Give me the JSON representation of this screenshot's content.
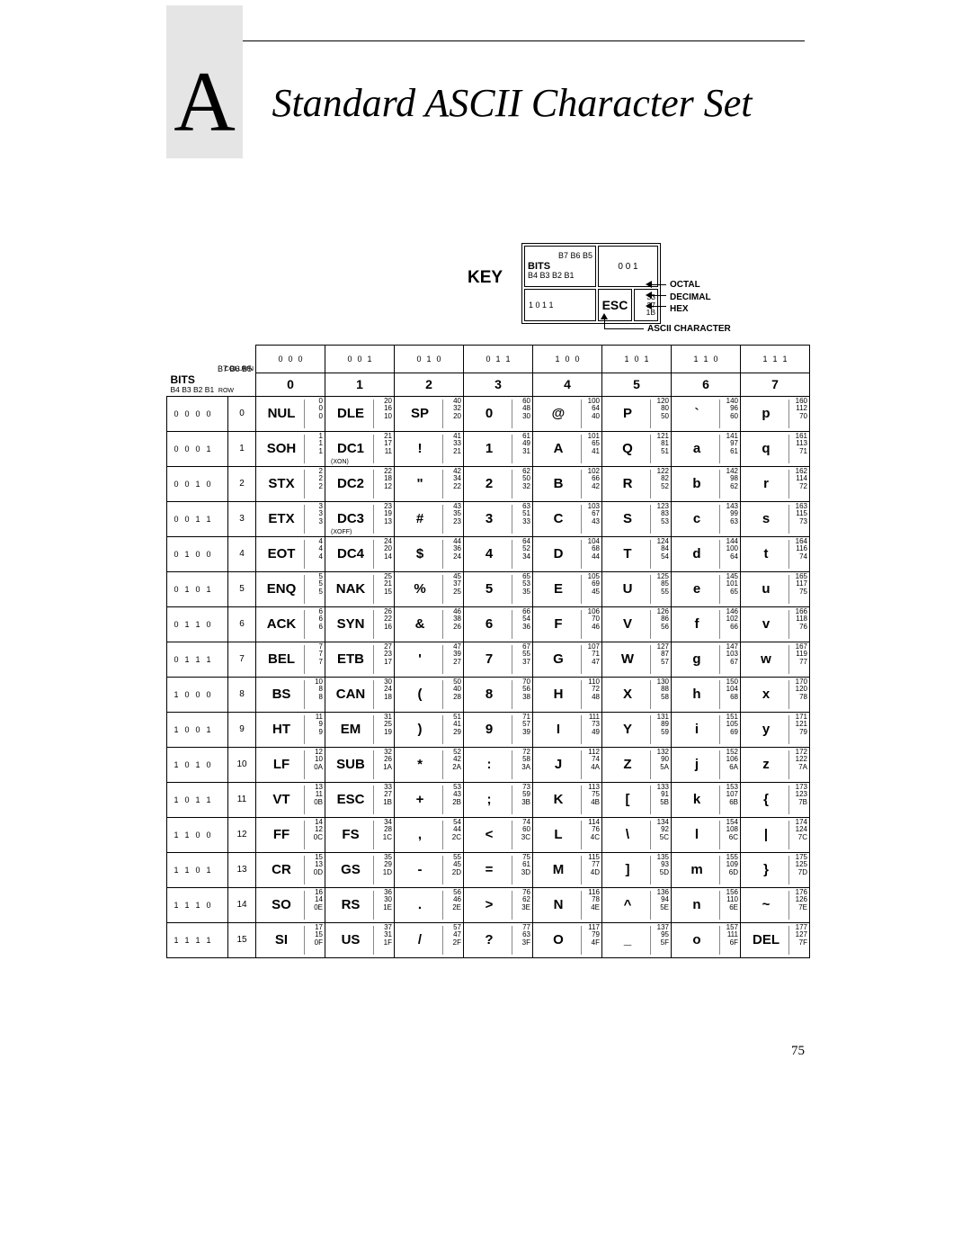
{
  "appendix_letter": "A",
  "title": "Standard ASCII Character Set",
  "page_number": "75",
  "key": {
    "label": "KEY",
    "top_bits_label": "BITS",
    "top_bits_small": "B7   B6   B5",
    "low_bits_small": "B4 B3 B2 B1",
    "top_vals": "0    0    1",
    "esc_bits": "1  0  1  1",
    "esc_label": "ESC",
    "esc_octal": "33",
    "esc_decimal": "27",
    "esc_hex": "1B",
    "legend_octal": "OCTAL",
    "legend_decimal": "DECIMAL",
    "legend_hex": "HEX",
    "legend_ascii": "ASCII CHARACTER"
  },
  "header": {
    "bits_label": "BITS",
    "b7_line": "B7   B6   B5",
    "b4_line": "B4 B3 B2 B1",
    "column_label": "COLUMN",
    "row_label": "ROW",
    "top_bit_triples": [
      "0 0 0",
      "0 0 1",
      "0 1 0",
      "0 1 1",
      "1 0 0",
      "1 0 1",
      "1 1 0",
      "1 1 1"
    ],
    "col_numbers": [
      "0",
      "1",
      "2",
      "3",
      "4",
      "5",
      "6",
      "7"
    ]
  },
  "rows": [
    {
      "bits": "0 0 0 0",
      "num": "0",
      "cells": [
        {
          "ch": "NUL",
          "o": "0",
          "d": "0",
          "h": "0"
        },
        {
          "ch": "DLE",
          "o": "20",
          "d": "16",
          "h": "10"
        },
        {
          "ch": "SP",
          "o": "40",
          "d": "32",
          "h": "20"
        },
        {
          "ch": "0",
          "o": "60",
          "d": "48",
          "h": "30"
        },
        {
          "ch": "@",
          "o": "100",
          "d": "64",
          "h": "40"
        },
        {
          "ch": "P",
          "o": "120",
          "d": "80",
          "h": "50"
        },
        {
          "ch": "`",
          "o": "140",
          "d": "96",
          "h": "60"
        },
        {
          "ch": "p",
          "o": "160",
          "d": "112",
          "h": "70"
        }
      ]
    },
    {
      "bits": "0 0 0 1",
      "num": "1",
      "cells": [
        {
          "ch": "SOH",
          "o": "1",
          "d": "1",
          "h": "1"
        },
        {
          "ch": "DC1",
          "sub": "(XON)",
          "o": "21",
          "d": "17",
          "h": "11"
        },
        {
          "ch": "!",
          "o": "41",
          "d": "33",
          "h": "21"
        },
        {
          "ch": "1",
          "o": "61",
          "d": "49",
          "h": "31"
        },
        {
          "ch": "A",
          "o": "101",
          "d": "65",
          "h": "41"
        },
        {
          "ch": "Q",
          "o": "121",
          "d": "81",
          "h": "51"
        },
        {
          "ch": "a",
          "o": "141",
          "d": "97",
          "h": "61"
        },
        {
          "ch": "q",
          "o": "161",
          "d": "113",
          "h": "71"
        }
      ]
    },
    {
      "bits": "0 0 1 0",
      "num": "2",
      "cells": [
        {
          "ch": "STX",
          "o": "2",
          "d": "2",
          "h": "2"
        },
        {
          "ch": "DC2",
          "o": "22",
          "d": "18",
          "h": "12"
        },
        {
          "ch": "\"",
          "o": "42",
          "d": "34",
          "h": "22"
        },
        {
          "ch": "2",
          "o": "62",
          "d": "50",
          "h": "32"
        },
        {
          "ch": "B",
          "o": "102",
          "d": "66",
          "h": "42"
        },
        {
          "ch": "R",
          "o": "122",
          "d": "82",
          "h": "52"
        },
        {
          "ch": "b",
          "o": "142",
          "d": "98",
          "h": "62"
        },
        {
          "ch": "r",
          "o": "162",
          "d": "114",
          "h": "72"
        }
      ]
    },
    {
      "bits": "0 0 1 1",
      "num": "3",
      "cells": [
        {
          "ch": "ETX",
          "o": "3",
          "d": "3",
          "h": "3"
        },
        {
          "ch": "DC3",
          "sub": "(XOFF)",
          "o": "23",
          "d": "19",
          "h": "13"
        },
        {
          "ch": "#",
          "o": "43",
          "d": "35",
          "h": "23"
        },
        {
          "ch": "3",
          "o": "63",
          "d": "51",
          "h": "33"
        },
        {
          "ch": "C",
          "o": "103",
          "d": "67",
          "h": "43"
        },
        {
          "ch": "S",
          "o": "123",
          "d": "83",
          "h": "53"
        },
        {
          "ch": "c",
          "o": "143",
          "d": "99",
          "h": "63"
        },
        {
          "ch": "s",
          "o": "163",
          "d": "115",
          "h": "73"
        }
      ]
    },
    {
      "bits": "0 1 0 0",
      "num": "4",
      "cells": [
        {
          "ch": "EOT",
          "o": "4",
          "d": "4",
          "h": "4"
        },
        {
          "ch": "DC4",
          "o": "24",
          "d": "20",
          "h": "14"
        },
        {
          "ch": "$",
          "o": "44",
          "d": "36",
          "h": "24"
        },
        {
          "ch": "4",
          "o": "64",
          "d": "52",
          "h": "34"
        },
        {
          "ch": "D",
          "o": "104",
          "d": "68",
          "h": "44"
        },
        {
          "ch": "T",
          "o": "124",
          "d": "84",
          "h": "54"
        },
        {
          "ch": "d",
          "o": "144",
          "d": "100",
          "h": "64"
        },
        {
          "ch": "t",
          "o": "164",
          "d": "116",
          "h": "74"
        }
      ]
    },
    {
      "bits": "0 1 0 1",
      "num": "5",
      "cells": [
        {
          "ch": "ENQ",
          "o": "5",
          "d": "5",
          "h": "5"
        },
        {
          "ch": "NAK",
          "o": "25",
          "d": "21",
          "h": "15"
        },
        {
          "ch": "%",
          "o": "45",
          "d": "37",
          "h": "25"
        },
        {
          "ch": "5",
          "o": "65",
          "d": "53",
          "h": "35"
        },
        {
          "ch": "E",
          "o": "105",
          "d": "69",
          "h": "45"
        },
        {
          "ch": "U",
          "o": "125",
          "d": "85",
          "h": "55"
        },
        {
          "ch": "e",
          "o": "145",
          "d": "101",
          "h": "65"
        },
        {
          "ch": "u",
          "o": "165",
          "d": "117",
          "h": "75"
        }
      ]
    },
    {
      "bits": "0 1 1 0",
      "num": "6",
      "cells": [
        {
          "ch": "ACK",
          "o": "6",
          "d": "6",
          "h": "6"
        },
        {
          "ch": "SYN",
          "o": "26",
          "d": "22",
          "h": "16"
        },
        {
          "ch": "&",
          "o": "46",
          "d": "38",
          "h": "26"
        },
        {
          "ch": "6",
          "o": "66",
          "d": "54",
          "h": "36"
        },
        {
          "ch": "F",
          "o": "106",
          "d": "70",
          "h": "46"
        },
        {
          "ch": "V",
          "o": "126",
          "d": "86",
          "h": "56"
        },
        {
          "ch": "f",
          "o": "146",
          "d": "102",
          "h": "66"
        },
        {
          "ch": "v",
          "o": "166",
          "d": "118",
          "h": "76"
        }
      ]
    },
    {
      "bits": "0 1 1 1",
      "num": "7",
      "cells": [
        {
          "ch": "BEL",
          "o": "7",
          "d": "7",
          "h": "7"
        },
        {
          "ch": "ETB",
          "o": "27",
          "d": "23",
          "h": "17"
        },
        {
          "ch": "'",
          "o": "47",
          "d": "39",
          "h": "27"
        },
        {
          "ch": "7",
          "o": "67",
          "d": "55",
          "h": "37"
        },
        {
          "ch": "G",
          "o": "107",
          "d": "71",
          "h": "47"
        },
        {
          "ch": "W",
          "o": "127",
          "d": "87",
          "h": "57"
        },
        {
          "ch": "g",
          "o": "147",
          "d": "103",
          "h": "67"
        },
        {
          "ch": "w",
          "o": "167",
          "d": "119",
          "h": "77"
        }
      ]
    },
    {
      "bits": "1 0 0 0",
      "num": "8",
      "cells": [
        {
          "ch": "BS",
          "o": "10",
          "d": "8",
          "h": "8"
        },
        {
          "ch": "CAN",
          "o": "30",
          "d": "24",
          "h": "18"
        },
        {
          "ch": "(",
          "o": "50",
          "d": "40",
          "h": "28"
        },
        {
          "ch": "8",
          "o": "70",
          "d": "56",
          "h": "38"
        },
        {
          "ch": "H",
          "o": "110",
          "d": "72",
          "h": "48"
        },
        {
          "ch": "X",
          "o": "130",
          "d": "88",
          "h": "58"
        },
        {
          "ch": "h",
          "o": "150",
          "d": "104",
          "h": "68"
        },
        {
          "ch": "x",
          "o": "170",
          "d": "120",
          "h": "78"
        }
      ]
    },
    {
      "bits": "1 0 0 1",
      "num": "9",
      "cells": [
        {
          "ch": "HT",
          "o": "11",
          "d": "9",
          "h": "9"
        },
        {
          "ch": "EM",
          "o": "31",
          "d": "25",
          "h": "19"
        },
        {
          "ch": ")",
          "o": "51",
          "d": "41",
          "h": "29"
        },
        {
          "ch": "9",
          "o": "71",
          "d": "57",
          "h": "39"
        },
        {
          "ch": "I",
          "o": "111",
          "d": "73",
          "h": "49"
        },
        {
          "ch": "Y",
          "o": "131",
          "d": "89",
          "h": "59"
        },
        {
          "ch": "i",
          "o": "151",
          "d": "105",
          "h": "69"
        },
        {
          "ch": "y",
          "o": "171",
          "d": "121",
          "h": "79"
        }
      ]
    },
    {
      "bits": "1 0 1 0",
      "num": "10",
      "cells": [
        {
          "ch": "LF",
          "o": "12",
          "d": "10",
          "h": "0A"
        },
        {
          "ch": "SUB",
          "o": "32",
          "d": "26",
          "h": "1A"
        },
        {
          "ch": "*",
          "o": "52",
          "d": "42",
          "h": "2A"
        },
        {
          "ch": ":",
          "o": "72",
          "d": "58",
          "h": "3A"
        },
        {
          "ch": "J",
          "o": "112",
          "d": "74",
          "h": "4A"
        },
        {
          "ch": "Z",
          "o": "132",
          "d": "90",
          "h": "5A"
        },
        {
          "ch": "j",
          "o": "152",
          "d": "106",
          "h": "6A"
        },
        {
          "ch": "z",
          "o": "172",
          "d": "122",
          "h": "7A"
        }
      ]
    },
    {
      "bits": "1 0 1 1",
      "num": "11",
      "cells": [
        {
          "ch": "VT",
          "o": "13",
          "d": "11",
          "h": "0B"
        },
        {
          "ch": "ESC",
          "o": "33",
          "d": "27",
          "h": "1B"
        },
        {
          "ch": "+",
          "o": "53",
          "d": "43",
          "h": "2B"
        },
        {
          "ch": ";",
          "o": "73",
          "d": "59",
          "h": "3B"
        },
        {
          "ch": "K",
          "o": "113",
          "d": "75",
          "h": "4B"
        },
        {
          "ch": "[",
          "o": "133",
          "d": "91",
          "h": "5B"
        },
        {
          "ch": "k",
          "o": "153",
          "d": "107",
          "h": "6B"
        },
        {
          "ch": "{",
          "o": "173",
          "d": "123",
          "h": "7B"
        }
      ]
    },
    {
      "bits": "1 1 0 0",
      "num": "12",
      "cells": [
        {
          "ch": "FF",
          "o": "14",
          "d": "12",
          "h": "0C"
        },
        {
          "ch": "FS",
          "o": "34",
          "d": "28",
          "h": "1C"
        },
        {
          "ch": ",",
          "o": "54",
          "d": "44",
          "h": "2C"
        },
        {
          "ch": "<",
          "o": "74",
          "d": "60",
          "h": "3C"
        },
        {
          "ch": "L",
          "o": "114",
          "d": "76",
          "h": "4C"
        },
        {
          "ch": "\\",
          "o": "134",
          "d": "92",
          "h": "5C"
        },
        {
          "ch": "l",
          "o": "154",
          "d": "108",
          "h": "6C"
        },
        {
          "ch": "|",
          "o": "174",
          "d": "124",
          "h": "7C"
        }
      ]
    },
    {
      "bits": "1 1 0 1",
      "num": "13",
      "cells": [
        {
          "ch": "CR",
          "o": "15",
          "d": "13",
          "h": "0D"
        },
        {
          "ch": "GS",
          "o": "35",
          "d": "29",
          "h": "1D"
        },
        {
          "ch": "-",
          "o": "55",
          "d": "45",
          "h": "2D"
        },
        {
          "ch": "=",
          "o": "75",
          "d": "61",
          "h": "3D"
        },
        {
          "ch": "M",
          "o": "115",
          "d": "77",
          "h": "4D"
        },
        {
          "ch": "]",
          "o": "135",
          "d": "93",
          "h": "5D"
        },
        {
          "ch": "m",
          "o": "155",
          "d": "109",
          "h": "6D"
        },
        {
          "ch": "}",
          "o": "175",
          "d": "125",
          "h": "7D"
        }
      ]
    },
    {
      "bits": "1 1 1 0",
      "num": "14",
      "cells": [
        {
          "ch": "SO",
          "o": "16",
          "d": "14",
          "h": "0E"
        },
        {
          "ch": "RS",
          "o": "36",
          "d": "30",
          "h": "1E"
        },
        {
          "ch": ".",
          "o": "56",
          "d": "46",
          "h": "2E"
        },
        {
          "ch": ">",
          "o": "76",
          "d": "62",
          "h": "3E"
        },
        {
          "ch": "N",
          "o": "116",
          "d": "78",
          "h": "4E"
        },
        {
          "ch": "^",
          "o": "136",
          "d": "94",
          "h": "5E"
        },
        {
          "ch": "n",
          "o": "156",
          "d": "110",
          "h": "6E"
        },
        {
          "ch": "~",
          "o": "176",
          "d": "126",
          "h": "7E"
        }
      ]
    },
    {
      "bits": "1 1 1 1",
      "num": "15",
      "cells": [
        {
          "ch": "SI",
          "o": "17",
          "d": "15",
          "h": "0F"
        },
        {
          "ch": "US",
          "o": "37",
          "d": "31",
          "h": "1F"
        },
        {
          "ch": "/",
          "o": "57",
          "d": "47",
          "h": "2F"
        },
        {
          "ch": "?",
          "o": "77",
          "d": "63",
          "h": "3F"
        },
        {
          "ch": "O",
          "o": "117",
          "d": "79",
          "h": "4F"
        },
        {
          "ch": "_",
          "o": "137",
          "d": "95",
          "h": "5F"
        },
        {
          "ch": "o",
          "o": "157",
          "d": "111",
          "h": "6F"
        },
        {
          "ch": "DEL",
          "o": "177",
          "d": "127",
          "h": "7F"
        }
      ]
    }
  ]
}
